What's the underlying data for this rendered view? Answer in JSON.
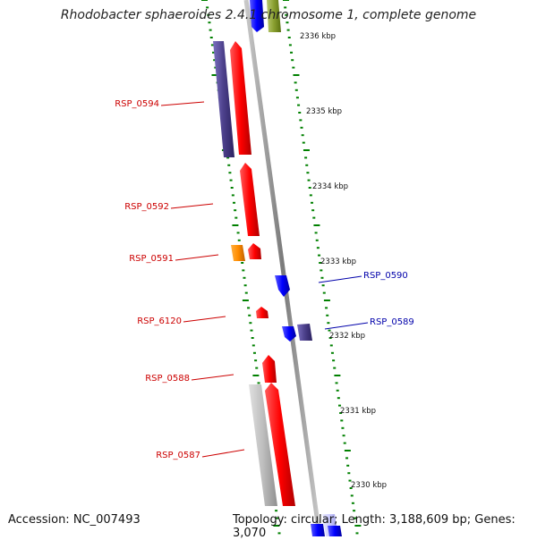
{
  "title": "Rhodobacter sphaeroides 2.4.1 chromosome 1, complete genome",
  "footer": {
    "accession": "Accession: NC_007493",
    "summary": "Topology: circular; Length: 3,188,609 bp; Genes: 3,070"
  },
  "scale": {
    "unit": "kbp",
    "ticks": [
      "2336 kbp",
      "2335 kbp",
      "2334 kbp",
      "2333 kbp",
      "2332 kbp",
      "2331 kbp",
      "2330 kbp"
    ]
  },
  "genes": [
    {
      "name": "RSP_0594",
      "strand": "minus",
      "color": "#ff0000",
      "label_color": "#cc0000"
    },
    {
      "name": "RSP_0592",
      "strand": "minus",
      "color": "#ff0000",
      "label_color": "#cc0000"
    },
    {
      "name": "RSP_0591",
      "strand": "minus",
      "color": "#ff0000",
      "label_color": "#cc0000"
    },
    {
      "name": "RSP_6120",
      "strand": "minus",
      "color": "#ff0000",
      "label_color": "#cc0000"
    },
    {
      "name": "RSP_0588",
      "strand": "minus",
      "color": "#ff0000",
      "label_color": "#cc0000"
    },
    {
      "name": "RSP_0587",
      "strand": "minus",
      "color": "#ff0000",
      "label_color": "#cc0000"
    },
    {
      "name": "RSP_0590",
      "strand": "plus",
      "color": "#0000ff",
      "label_color": "#0000aa"
    },
    {
      "name": "RSP_0589",
      "strand": "plus",
      "color": "#0000ff",
      "label_color": "#0000aa"
    }
  ],
  "colors": {
    "backbone": "#8a8a8a",
    "minus_gene": "#ff0000",
    "plus_gene": "#0000ff",
    "cog_purple": "#4b3f8a",
    "cog_orange": "#ff8c00",
    "cog_gray": "#b8b8b8",
    "cog_olive": "#8aa030",
    "cog_lightblue": "#c8c8ff",
    "tick_green": "#008000"
  }
}
